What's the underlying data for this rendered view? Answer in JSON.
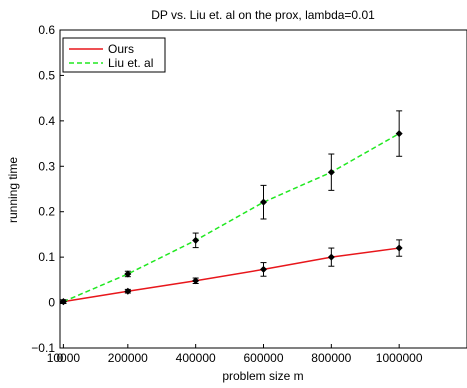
{
  "chart_data": {
    "type": "line",
    "title": "DP vs. Liu et. al on the prox, lambda=0.01",
    "xlabel": "problem size m",
    "ylabel": "running time",
    "x_tick_labels": [
      "0",
      "10000",
      "200000",
      "400000",
      "600000",
      "800000",
      "1000000"
    ],
    "y_tick_labels": [
      "−0.1",
      "0",
      "0.1",
      "0.2",
      "0.3",
      "0.4",
      "0.5",
      "0.6"
    ],
    "y_tick_values": [
      -0.1,
      0,
      0.1,
      0.2,
      0.3,
      0.4,
      0.5,
      0.6
    ],
    "xlim": [
      0,
      1200000
    ],
    "ylim": [
      -0.1,
      0.6
    ],
    "grid": false,
    "legend_position": "top-left",
    "x": [
      10000,
      200000,
      400000,
      600000,
      800000,
      1000000
    ],
    "series": [
      {
        "name": "Ours",
        "color": "#e8161b",
        "style": "solid",
        "values": [
          0.002,
          0.025,
          0.048,
          0.073,
          0.1,
          0.12
        ],
        "error": [
          0.004,
          0.004,
          0.006,
          0.015,
          0.02,
          0.018
        ]
      },
      {
        "name": "Liu et. al",
        "color": "#21e821",
        "style": "dashed",
        "values": [
          0.002,
          0.063,
          0.137,
          0.221,
          0.287,
          0.372
        ],
        "error": [
          0.004,
          0.006,
          0.016,
          0.037,
          0.04,
          0.05
        ]
      }
    ]
  }
}
